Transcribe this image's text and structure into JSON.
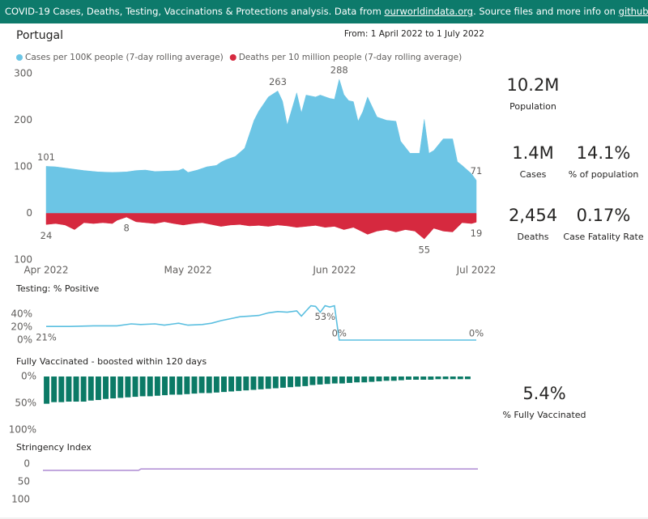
{
  "header": {
    "text_1": "COVID-19 Cases, Deaths, Testing, Vaccinations & Protections analysis. Data from ",
    "link_1": "ourworldindata.org",
    "text_2": ". Source files and more info on ",
    "link_2": "github",
    "text_3": "."
  },
  "country": "Portugal",
  "date_range": "From: 1 April 2022 to 1 July 2022",
  "chart_data": [
    {
      "type": "area",
      "xlim": [
        0,
        91
      ],
      "xticks": [
        {
          "value": 0,
          "label": "Apr 2022"
        },
        {
          "value": 30,
          "label": "May 2022"
        },
        {
          "value": 61,
          "label": "Jun 2022"
        },
        {
          "value": 91,
          "label": "Jul 2022"
        }
      ],
      "ylim": [
        -100,
        300
      ],
      "yticks": [
        300,
        200,
        100,
        0,
        {
          "value": -100,
          "label": "100"
        }
      ],
      "legend": "top-left",
      "series": [
        {
          "name": "Cases per 100K people (7-day rolling average)",
          "color": "#6cc5e5",
          "x": [
            0,
            2,
            5,
            8,
            11,
            14,
            17,
            19,
            21,
            23,
            26,
            28,
            29,
            30,
            32,
            34,
            36,
            37,
            38,
            40,
            42,
            43,
            44,
            45,
            47,
            49,
            50,
            51,
            53,
            54,
            55,
            57,
            58,
            60,
            61,
            62,
            63,
            64,
            65,
            66,
            67,
            68,
            70,
            72,
            74,
            75,
            77,
            79,
            80,
            81,
            82,
            84,
            86,
            87,
            88,
            90,
            91
          ],
          "values": [
            101,
            100,
            96,
            92,
            89,
            88,
            89,
            92,
            93,
            90,
            91,
            92,
            96,
            88,
            93,
            100,
            103,
            110,
            115,
            122,
            140,
            170,
            200,
            220,
            250,
            263,
            241,
            190,
            259,
            216,
            254,
            250,
            254,
            247,
            245,
            288,
            255,
            242,
            240,
            198,
            219,
            250,
            207,
            200,
            198,
            155,
            129,
            129,
            202,
            129,
            135,
            160,
            160,
            111,
            103,
            85,
            71
          ],
          "value_labels": [
            "101",
            null,
            null,
            null,
            null,
            null,
            null,
            null,
            null,
            null,
            null,
            null,
            null,
            null,
            null,
            null,
            null,
            null,
            null,
            null,
            null,
            null,
            null,
            null,
            null,
            "263",
            null,
            null,
            null,
            null,
            null,
            null,
            null,
            null,
            null,
            "288",
            null,
            null,
            null,
            null,
            null,
            null,
            null,
            null,
            null,
            null,
            null,
            null,
            null,
            null,
            null,
            null,
            null,
            null,
            null,
            null,
            "71"
          ]
        },
        {
          "name": "Deaths per 10 million people (7-day rolling average)",
          "color": "#d6293f",
          "x": [
            0,
            2,
            4,
            6,
            8,
            10,
            12,
            14,
            15,
            17,
            19,
            21,
            23,
            25,
            27,
            29,
            31,
            33,
            35,
            37,
            39,
            41,
            43,
            45,
            47,
            49,
            51,
            53,
            55,
            57,
            59,
            61,
            63,
            65,
            67,
            68,
            70,
            72,
            74,
            76,
            78,
            80,
            82,
            84,
            86,
            88,
            90,
            91
          ],
          "values": [
            -24,
            -22,
            -25,
            -35,
            -20,
            -22,
            -20,
            -22,
            -15,
            -8,
            -18,
            -20,
            -22,
            -18,
            -22,
            -25,
            -22,
            -20,
            -24,
            -28,
            -25,
            -24,
            -27,
            -26,
            -28,
            -25,
            -27,
            -30,
            -28,
            -26,
            -30,
            -28,
            -35,
            -30,
            -40,
            -45,
            -38,
            -35,
            -40,
            -35,
            -38,
            -55,
            -32,
            -38,
            -40,
            -20,
            -22,
            -19
          ],
          "value_labels": [
            "24",
            null,
            null,
            null,
            null,
            null,
            null,
            null,
            null,
            "8",
            null,
            null,
            null,
            null,
            null,
            null,
            null,
            null,
            null,
            null,
            null,
            null,
            null,
            null,
            null,
            null,
            null,
            null,
            null,
            null,
            null,
            null,
            null,
            null,
            null,
            null,
            null,
            null,
            null,
            null,
            null,
            "55",
            null,
            null,
            null,
            null,
            null,
            "19"
          ]
        }
      ]
    },
    {
      "type": "line",
      "title": "Testing: % Positive",
      "color": "#5bbfe0",
      "xlim": [
        0,
        91
      ],
      "ylim": [
        0,
        55
      ],
      "yticks": [
        {
          "value": 0,
          "label": "0%"
        },
        {
          "value": 20,
          "label": "20%"
        },
        {
          "value": 40,
          "label": "40%"
        }
      ],
      "x": [
        0,
        5,
        10,
        15,
        18,
        20,
        23,
        25,
        27,
        28,
        30,
        33,
        35,
        37,
        39,
        41,
        43,
        45,
        47,
        49,
        51,
        53,
        54,
        55,
        56,
        57,
        58,
        59,
        60,
        61,
        62,
        70,
        80,
        91
      ],
      "values": [
        21,
        21,
        22,
        22,
        25,
        24,
        25,
        23,
        25,
        26,
        23,
        24,
        26,
        30,
        33,
        36,
        37,
        38,
        42,
        44,
        43,
        45,
        37,
        45,
        53,
        52,
        43,
        53,
        51,
        53,
        0,
        0,
        0,
        0
      ],
      "value_labels": [
        "21%",
        null,
        null,
        null,
        null,
        null,
        null,
        null,
        null,
        null,
        null,
        null,
        null,
        null,
        null,
        null,
        null,
        null,
        null,
        null,
        null,
        null,
        null,
        null,
        null,
        null,
        null,
        "53%",
        null,
        null,
        "0%",
        null,
        null,
        "0%"
      ]
    },
    {
      "type": "bar",
      "title": "Fully Vaccinated - boosted within 120 days",
      "color": "#0b7a66",
      "inverted": true,
      "ylim": [
        0,
        100
      ],
      "yticks": [
        {
          "value": 0,
          "label": "0%"
        },
        {
          "value": 50,
          "label": "50%"
        },
        {
          "value": 100,
          "label": "100%"
        }
      ],
      "categories": [
        null,
        null,
        null,
        null,
        null,
        null,
        null,
        null,
        null,
        null,
        null,
        null,
        null,
        null,
        null,
        null,
        null,
        null,
        null,
        null,
        null,
        null,
        null,
        null,
        null,
        null,
        null,
        null,
        null,
        null,
        null,
        null,
        null,
        null,
        null,
        null,
        null,
        null,
        null,
        null,
        null,
        null,
        null,
        null,
        null,
        null,
        null,
        null,
        null,
        null,
        null,
        null,
        null,
        null,
        null,
        null,
        null,
        null
      ],
      "values": [
        51,
        48,
        48,
        47,
        47,
        47,
        45,
        44,
        42,
        41,
        40,
        39,
        38,
        37,
        37,
        36,
        35,
        34,
        34,
        33,
        32,
        31,
        31,
        30,
        29,
        28,
        27,
        26,
        25,
        24,
        23,
        22,
        21,
        20,
        19,
        18,
        16,
        15,
        14,
        13,
        13,
        12,
        11,
        11,
        10,
        9,
        8,
        8,
        7,
        6,
        6,
        6,
        6,
        5,
        5,
        5,
        5,
        5
      ]
    },
    {
      "type": "line",
      "title": "Stringency Index",
      "color": "#b493d6",
      "inverted": true,
      "xlim": [
        0,
        91
      ],
      "ylim": [
        0,
        100
      ],
      "yticks": [
        0,
        50,
        100
      ],
      "x": [
        0,
        20,
        20.5,
        91
      ],
      "values": [
        18,
        18,
        14,
        14
      ]
    }
  ],
  "kpis": [
    {
      "value": "10.2M",
      "label": "Population"
    },
    {
      "value": "1.4M",
      "label": "Cases"
    },
    {
      "value": "14.1%",
      "label": "% of population"
    },
    {
      "value": "2,454",
      "label": "Deaths"
    },
    {
      "value": "0.17%",
      "label": "Case Fatality Rate"
    },
    {
      "value": "5.4%",
      "label": "% Fully Vaccinated"
    }
  ]
}
